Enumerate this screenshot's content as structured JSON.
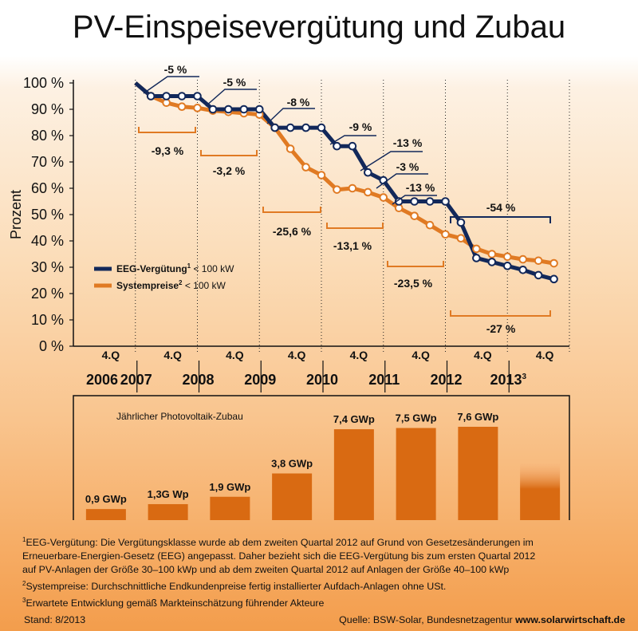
{
  "title": "PV-Einspeisevergütung und Zubau",
  "colors": {
    "eeg": "#12285a",
    "system": "#e07a23",
    "bar": "#d96a12",
    "axis": "#111111"
  },
  "chart_data": [
    {
      "type": "line",
      "ylabel": "Prozent",
      "ylim": [
        0,
        100
      ],
      "y_ticks": [
        "0 %",
        "10 %",
        "20 %",
        "30 %",
        "40 %",
        "50 %",
        "60 %",
        "70 %",
        "80 %",
        "90 %",
        "100 %"
      ],
      "quarter_labels": [
        "4.Q",
        "4.Q",
        "4.Q",
        "4.Q",
        "4.Q",
        "4.Q",
        "4.Q",
        "4.Q"
      ],
      "years": [
        "2006",
        "2007",
        "2008",
        "2009",
        "2010",
        "2011",
        "2012",
        "2013"
      ],
      "year_footnote": "3",
      "series": [
        {
          "name": "EEG-Vergütung",
          "legend_sup": "1",
          "legend_suffix": " < 100 kW",
          "points": [
            [
              4,
              100
            ],
            [
              5,
              95
            ],
            [
              6,
              95
            ],
            [
              7,
              95
            ],
            [
              8,
              95
            ],
            [
              9,
              90
            ],
            [
              10,
              90
            ],
            [
              11,
              90
            ],
            [
              12,
              90
            ],
            [
              13,
              83
            ],
            [
              14,
              83
            ],
            [
              15,
              83
            ],
            [
              16,
              83
            ],
            [
              17,
              76
            ],
            [
              18,
              76
            ],
            [
              19,
              66
            ],
            [
              20,
              63
            ],
            [
              21,
              55
            ],
            [
              22,
              55
            ],
            [
              23,
              55
            ],
            [
              24,
              55
            ],
            [
              25,
              47
            ],
            [
              26,
              33.5
            ],
            [
              27,
              32
            ],
            [
              28,
              30.5
            ],
            [
              29,
              29
            ],
            [
              30,
              27
            ],
            [
              31,
              25.5
            ]
          ]
        },
        {
          "name": "Systempreise",
          "legend_sup": "2",
          "legend_suffix": " < 100 kW",
          "points": [
            [
              4,
              100
            ],
            [
              5,
              95
            ],
            [
              6,
              92.5
            ],
            [
              7,
              91
            ],
            [
              8,
              90.5
            ],
            [
              9,
              89.5
            ],
            [
              10,
              89
            ],
            [
              11,
              88.5
            ],
            [
              12,
              88
            ],
            [
              13,
              83
            ],
            [
              14,
              75
            ],
            [
              15,
              68
            ],
            [
              16,
              65
            ],
            [
              17,
              59.5
            ],
            [
              18,
              60
            ],
            [
              19,
              58.5
            ],
            [
              20,
              56.5
            ],
            [
              21,
              52.5
            ],
            [
              22,
              49.5
            ],
            [
              23,
              46
            ],
            [
              24,
              42.5
            ],
            [
              25,
              41
            ],
            [
              26,
              37
            ],
            [
              27,
              35
            ],
            [
              28,
              34
            ],
            [
              29,
              33
            ],
            [
              30,
              32.5
            ],
            [
              31,
              31.5
            ]
          ]
        }
      ],
      "annotations": [
        {
          "text": "-5 %",
          "side": "above"
        },
        {
          "text": "-5 %",
          "side": "above"
        },
        {
          "text": "-8 %",
          "side": "above"
        },
        {
          "text": "-9 %",
          "side": "above"
        },
        {
          "text": "-13 %",
          "side": "above"
        },
        {
          "text": "-3 %",
          "side": "above"
        },
        {
          "text": "-13 %",
          "side": "above"
        },
        {
          "text": "-54 %",
          "side": "above"
        },
        {
          "text": "-9,3 %",
          "side": "below"
        },
        {
          "text": "-3,2 %",
          "side": "below"
        },
        {
          "text": "-25,6 %",
          "side": "below"
        },
        {
          "text": "-13,1 %",
          "side": "below"
        },
        {
          "text": "-23,5 %",
          "side": "below"
        },
        {
          "text": "-27 %",
          "side": "below"
        }
      ]
    },
    {
      "type": "bar",
      "title": "Jährlicher Photovoltaik-Zubau",
      "categories": [
        "2006",
        "2007",
        "2008",
        "2009",
        "2010",
        "2011",
        "2012",
        "2013"
      ],
      "values": [
        0.9,
        1.3,
        1.9,
        3.8,
        7.4,
        7.5,
        7.6,
        4.6
      ],
      "labels": [
        "0,9 GWp",
        "1,3G Wp",
        "1,9 GWp",
        "3,8 GWp",
        "7,4 GWp",
        "7,5 GWp",
        "7,6 GWp",
        ""
      ],
      "estimated": [
        false,
        false,
        false,
        false,
        false,
        false,
        false,
        true
      ]
    }
  ],
  "notes": [
    {
      "sup": "1",
      "lines": [
        "EEG-Vergütung: Die Vergütungsklasse wurde ab dem zweiten Quartal 2012 auf Grund von Gesetzesänderungen im",
        "Erneuerbare-Energien-Gesetz (EEG) angepasst. Daher bezieht sich die EEG-Vergütung bis zum ersten Quartal 2012",
        "auf PV-Anlagen der Größe 30–100 kWp und ab dem zweiten Quartal 2012 auf Anlagen der Größe 40–100 kWp"
      ]
    },
    {
      "sup": "2",
      "lines": [
        "Systempreise: Durchschnittliche Endkundenpreise fertig installierter Aufdach-Anlagen ohne USt."
      ]
    },
    {
      "sup": "3",
      "lines": [
        "Erwartete Entwicklung gemäß Markteinschätzung führender Akteure"
      ]
    }
  ],
  "footer": {
    "stand": "Stand: 8/2013",
    "source": "Quelle: BSW-Solar, Bundesnetzagentur",
    "website": "www.solarwirtschaft.de"
  }
}
